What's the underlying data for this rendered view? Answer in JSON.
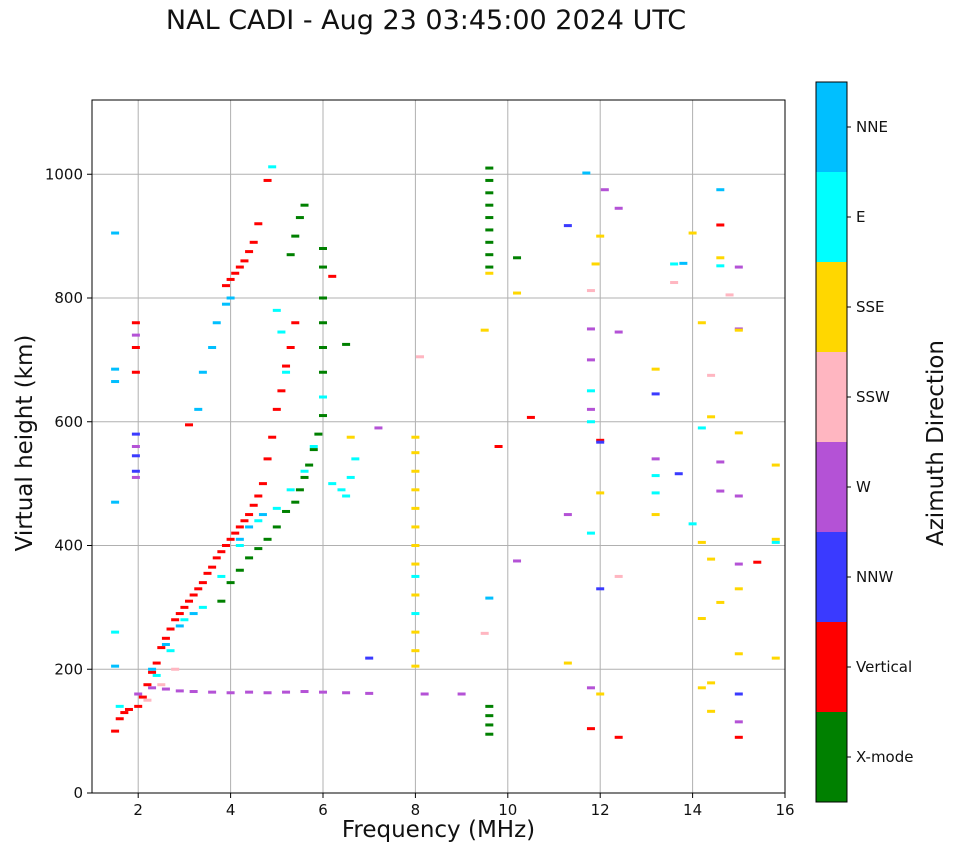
{
  "chart_data": {
    "type": "scatter",
    "title": "NAL CADI - Aug 23 03:45:00 2024 UTC",
    "xlabel": "Frequency (MHz)",
    "ylabel": "Virtual height (km)",
    "xlim": [
      1,
      16
    ],
    "ylim": [
      0,
      1120
    ],
    "xticks": [
      2,
      4,
      6,
      8,
      10,
      12,
      14,
      16
    ],
    "yticks": [
      0,
      200,
      400,
      600,
      800,
      1000
    ],
    "grid": true,
    "colorbar": {
      "label": "Azimuth Direction",
      "entries": [
        {
          "name": "X-mode",
          "color": "#008000"
        },
        {
          "name": "Vertical",
          "color": "#ff0000"
        },
        {
          "name": "NNW",
          "color": "#3a3aff"
        },
        {
          "name": "W",
          "color": "#b452d6"
        },
        {
          "name": "SSW",
          "color": "#ffb6c1"
        },
        {
          "name": "SSE",
          "color": "#ffd700"
        },
        {
          "name": "E",
          "color": "#00ffff"
        },
        {
          "name": "NNE",
          "color": "#00bfff"
        }
      ]
    },
    "series": [
      {
        "name": "Vertical",
        "color": "#ff0000",
        "points": [
          [
            1.5,
            100
          ],
          [
            1.6,
            120
          ],
          [
            1.7,
            130
          ],
          [
            1.8,
            135
          ],
          [
            2.0,
            140
          ],
          [
            2.1,
            155
          ],
          [
            2.2,
            175
          ],
          [
            2.3,
            195
          ],
          [
            2.4,
            210
          ],
          [
            2.5,
            235
          ],
          [
            2.6,
            250
          ],
          [
            2.7,
            265
          ],
          [
            2.8,
            280
          ],
          [
            2.9,
            290
          ],
          [
            3.0,
            300
          ],
          [
            3.1,
            310
          ],
          [
            3.2,
            320
          ],
          [
            3.3,
            330
          ],
          [
            3.4,
            340
          ],
          [
            3.5,
            355
          ],
          [
            3.6,
            365
          ],
          [
            3.7,
            380
          ],
          [
            3.8,
            390
          ],
          [
            3.9,
            400
          ],
          [
            4.0,
            410
          ],
          [
            4.1,
            420
          ],
          [
            4.2,
            430
          ],
          [
            4.3,
            440
          ],
          [
            4.4,
            450
          ],
          [
            4.5,
            465
          ],
          [
            4.6,
            480
          ],
          [
            4.7,
            500
          ],
          [
            4.8,
            540
          ],
          [
            4.9,
            575
          ],
          [
            5.0,
            620
          ],
          [
            5.1,
            650
          ],
          [
            5.2,
            690
          ],
          [
            5.3,
            720
          ],
          [
            5.4,
            760
          ],
          [
            1.95,
            760
          ],
          [
            1.95,
            720
          ],
          [
            1.95,
            680
          ],
          [
            3.1,
            595
          ],
          [
            3.9,
            820
          ],
          [
            4.0,
            830
          ],
          [
            4.1,
            840
          ],
          [
            4.2,
            850
          ],
          [
            4.3,
            860
          ],
          [
            4.4,
            875
          ],
          [
            4.5,
            890
          ],
          [
            4.6,
            920
          ],
          [
            4.8,
            990
          ],
          [
            6.2,
            835
          ],
          [
            10.5,
            607
          ],
          [
            9.8,
            560
          ],
          [
            12.0,
            570
          ],
          [
            12.4,
            90
          ],
          [
            15.0,
            90
          ],
          [
            15.4,
            373
          ],
          [
            11.8,
            104
          ],
          [
            14.6,
            918
          ]
        ]
      },
      {
        "name": "X-mode",
        "color": "#008000",
        "points": [
          [
            3.8,
            310
          ],
          [
            4.0,
            340
          ],
          [
            4.2,
            360
          ],
          [
            4.4,
            380
          ],
          [
            4.6,
            395
          ],
          [
            4.8,
            410
          ],
          [
            5.0,
            430
          ],
          [
            5.2,
            455
          ],
          [
            5.4,
            470
          ],
          [
            5.5,
            490
          ],
          [
            5.6,
            510
          ],
          [
            5.7,
            530
          ],
          [
            5.8,
            555
          ],
          [
            5.9,
            580
          ],
          [
            6.0,
            610
          ],
          [
            5.3,
            870
          ],
          [
            5.4,
            900
          ],
          [
            5.5,
            930
          ],
          [
            5.6,
            950
          ],
          [
            6.0,
            680
          ],
          [
            6.0,
            720
          ],
          [
            6.0,
            760
          ],
          [
            6.0,
            800
          ],
          [
            6.0,
            850
          ],
          [
            6.0,
            880
          ],
          [
            6.5,
            725
          ],
          [
            9.6,
            1010
          ],
          [
            9.6,
            990
          ],
          [
            9.6,
            970
          ],
          [
            9.6,
            950
          ],
          [
            9.6,
            930
          ],
          [
            9.6,
            910
          ],
          [
            9.6,
            890
          ],
          [
            9.6,
            870
          ],
          [
            9.6,
            850
          ],
          [
            9.6,
            140
          ],
          [
            9.6,
            125
          ],
          [
            9.6,
            110
          ],
          [
            9.6,
            95
          ],
          [
            10.2,
            865
          ]
        ]
      },
      {
        "name": "NNW",
        "color": "#3a3aff",
        "points": [
          [
            1.95,
            580
          ],
          [
            1.95,
            545
          ],
          [
            1.95,
            520
          ],
          [
            7.0,
            218
          ],
          [
            11.3,
            917
          ],
          [
            13.2,
            645
          ],
          [
            13.7,
            516
          ],
          [
            15.0,
            160
          ],
          [
            12.0,
            330
          ],
          [
            12.0,
            567
          ]
        ]
      },
      {
        "name": "W",
        "color": "#b452d6",
        "points": [
          [
            2.0,
            160
          ],
          [
            2.3,
            170
          ],
          [
            2.6,
            168
          ],
          [
            2.9,
            165
          ],
          [
            3.2,
            164
          ],
          [
            3.6,
            163
          ],
          [
            4.0,
            162
          ],
          [
            4.4,
            163
          ],
          [
            4.8,
            162
          ],
          [
            5.2,
            163
          ],
          [
            5.6,
            164
          ],
          [
            6.0,
            163
          ],
          [
            6.5,
            162
          ],
          [
            7.0,
            161
          ],
          [
            8.2,
            160
          ],
          [
            9.0,
            160
          ],
          [
            1.95,
            560
          ],
          [
            1.95,
            510
          ],
          [
            1.95,
            740
          ],
          [
            12.1,
            975
          ],
          [
            12.4,
            945
          ],
          [
            12.4,
            745
          ],
          [
            11.8,
            750
          ],
          [
            11.8,
            700
          ],
          [
            11.8,
            620
          ],
          [
            10.2,
            375
          ],
          [
            11.3,
            450
          ],
          [
            13.2,
            540
          ],
          [
            14.6,
            535
          ],
          [
            14.6,
            488
          ],
          [
            15.0,
            480
          ],
          [
            15.0,
            750
          ],
          [
            15.0,
            850
          ],
          [
            15.0,
            370
          ],
          [
            15.0,
            115
          ],
          [
            11.8,
            170
          ],
          [
            7.2,
            590
          ]
        ]
      },
      {
        "name": "SSW",
        "color": "#ffb6c1",
        "points": [
          [
            2.5,
            175
          ],
          [
            2.8,
            200
          ],
          [
            2.2,
            150
          ],
          [
            9.5,
            258
          ],
          [
            12.4,
            350
          ],
          [
            13.6,
            825
          ],
          [
            14.4,
            675
          ],
          [
            14.8,
            805
          ],
          [
            11.8,
            812
          ],
          [
            8.1,
            705
          ]
        ]
      },
      {
        "name": "SSE",
        "color": "#ffd700",
        "points": [
          [
            8.0,
            575
          ],
          [
            8.0,
            550
          ],
          [
            8.0,
            520
          ],
          [
            8.0,
            490
          ],
          [
            8.0,
            460
          ],
          [
            8.0,
            430
          ],
          [
            8.0,
            400
          ],
          [
            8.0,
            370
          ],
          [
            8.0,
            320
          ],
          [
            8.0,
            260
          ],
          [
            8.0,
            230
          ],
          [
            8.0,
            205
          ],
          [
            9.6,
            840
          ],
          [
            9.5,
            748
          ],
          [
            10.2,
            808
          ],
          [
            11.3,
            210
          ],
          [
            12.0,
            485
          ],
          [
            12.0,
            160
          ],
          [
            11.9,
            855
          ],
          [
            12.0,
            900
          ],
          [
            13.2,
            450
          ],
          [
            13.2,
            685
          ],
          [
            14.0,
            905
          ],
          [
            14.2,
            760
          ],
          [
            14.2,
            405
          ],
          [
            14.2,
            282
          ],
          [
            14.2,
            170
          ],
          [
            14.4,
            178
          ],
          [
            14.4,
            132
          ],
          [
            14.4,
            378
          ],
          [
            14.6,
            308
          ],
          [
            14.6,
            865
          ],
          [
            14.4,
            608
          ],
          [
            15.0,
            582
          ],
          [
            15.0,
            330
          ],
          [
            15.0,
            225
          ],
          [
            15.0,
            748
          ],
          [
            15.8,
            530
          ],
          [
            15.8,
            410
          ],
          [
            15.8,
            218
          ],
          [
            6.6,
            575
          ]
        ]
      },
      {
        "name": "E",
        "color": "#00ffff",
        "points": [
          [
            1.5,
            260
          ],
          [
            1.6,
            140
          ],
          [
            2.4,
            190
          ],
          [
            2.7,
            230
          ],
          [
            3.0,
            280
          ],
          [
            3.4,
            300
          ],
          [
            3.8,
            350
          ],
          [
            4.2,
            400
          ],
          [
            4.6,
            440
          ],
          [
            5.0,
            460
          ],
          [
            5.3,
            490
          ],
          [
            5.6,
            520
          ],
          [
            5.8,
            560
          ],
          [
            6.0,
            640
          ],
          [
            6.2,
            500
          ],
          [
            6.4,
            490
          ],
          [
            6.5,
            480
          ],
          [
            6.6,
            510
          ],
          [
            6.7,
            540
          ],
          [
            5.2,
            680
          ],
          [
            5.1,
            745
          ],
          [
            5.0,
            780
          ],
          [
            4.9,
            1012
          ],
          [
            8.0,
            350
          ],
          [
            8.0,
            290
          ],
          [
            11.8,
            650
          ],
          [
            11.8,
            600
          ],
          [
            11.8,
            420
          ],
          [
            13.2,
            513
          ],
          [
            13.2,
            485
          ],
          [
            13.6,
            855
          ],
          [
            14.0,
            435
          ],
          [
            14.2,
            590
          ],
          [
            14.6,
            852
          ],
          [
            15.8,
            405
          ]
        ]
      },
      {
        "name": "NNE",
        "color": "#00bfff",
        "points": [
          [
            1.5,
            905
          ],
          [
            1.5,
            685
          ],
          [
            1.5,
            665
          ],
          [
            1.5,
            470
          ],
          [
            1.5,
            205
          ],
          [
            2.3,
            200
          ],
          [
            2.6,
            240
          ],
          [
            2.9,
            270
          ],
          [
            3.2,
            290
          ],
          [
            3.3,
            620
          ],
          [
            3.4,
            680
          ],
          [
            3.6,
            720
          ],
          [
            3.7,
            760
          ],
          [
            3.9,
            790
          ],
          [
            4.0,
            800
          ],
          [
            4.2,
            410
          ],
          [
            4.4,
            430
          ],
          [
            4.7,
            450
          ],
          [
            9.6,
            315
          ],
          [
            11.7,
            1002
          ],
          [
            14.6,
            975
          ],
          [
            13.8,
            856
          ]
        ]
      }
    ]
  }
}
